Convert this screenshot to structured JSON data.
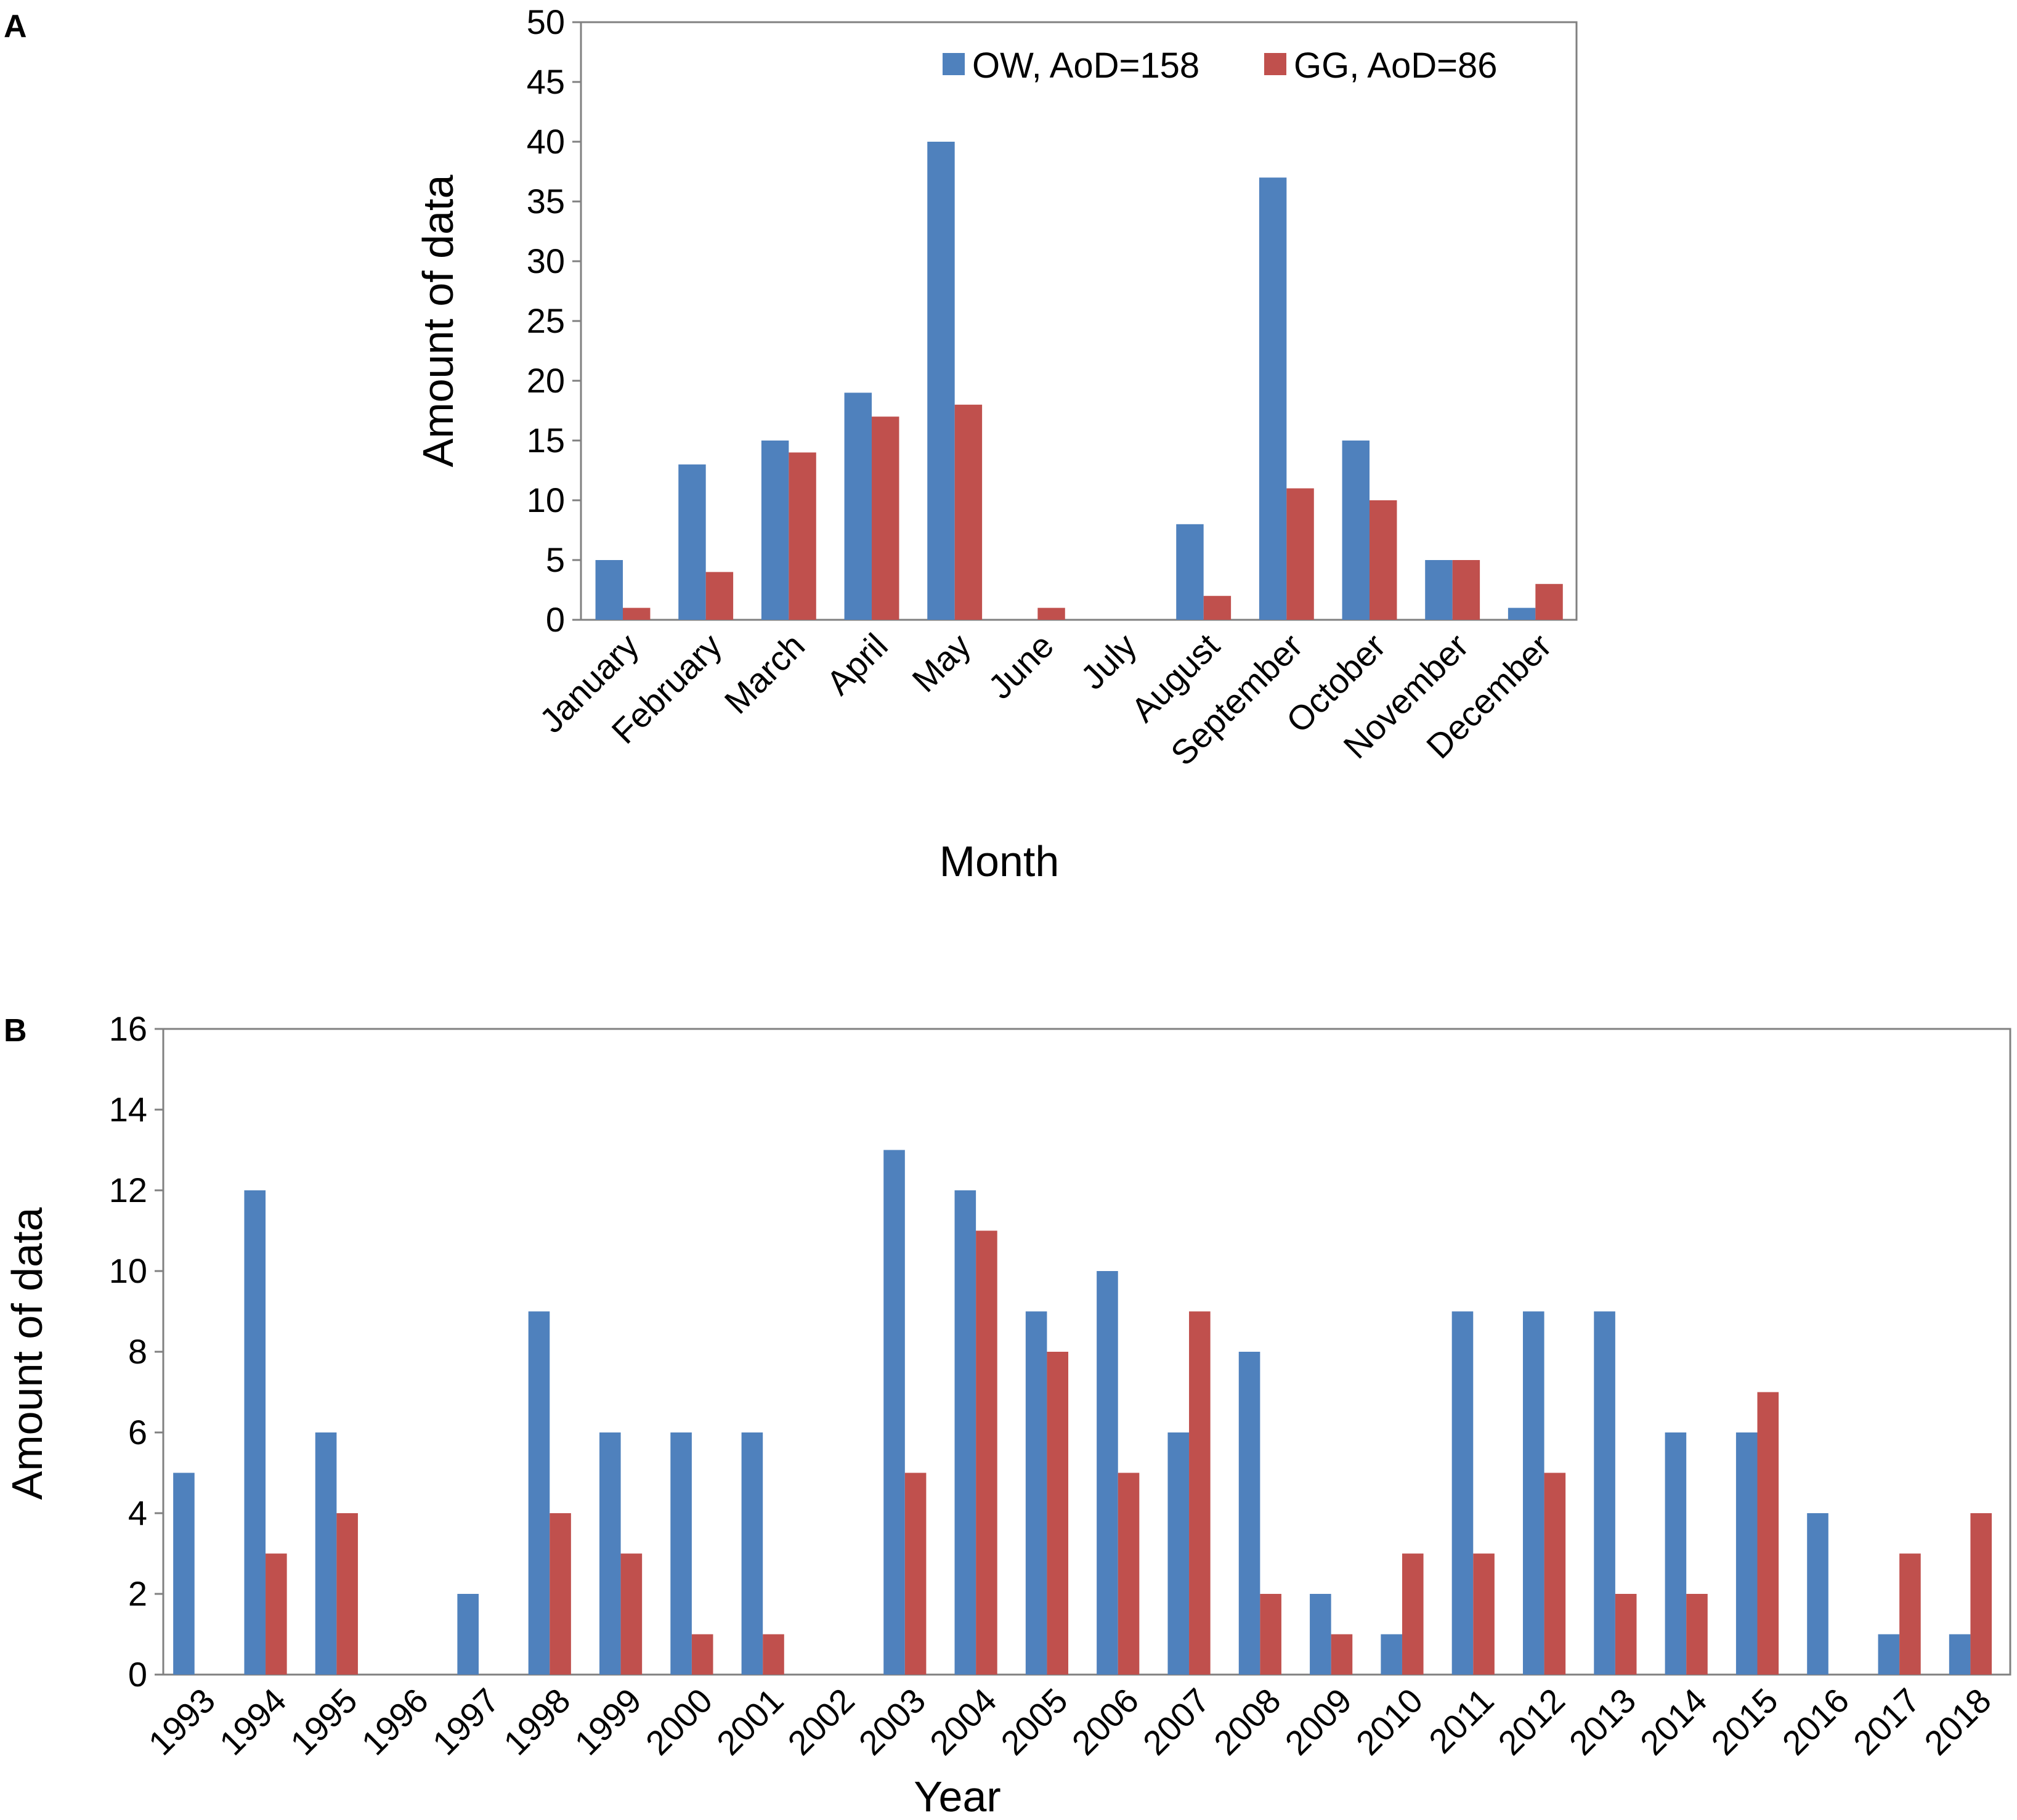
{
  "colors": {
    "ow": "#4F81BD",
    "gg": "#C0504D",
    "axis": "#808080"
  },
  "legend": {
    "ow": "OW, AoD=158",
    "gg": "GG, AoD=86"
  },
  "chart_data": [
    {
      "panel": "A",
      "type": "bar",
      "title": "",
      "xlabel": "Month",
      "ylabel": "Amount of data",
      "ylim": [
        0,
        50
      ],
      "yticks": [
        "0",
        "5",
        "10",
        "15",
        "20",
        "25",
        "30",
        "35",
        "40",
        "45",
        "50"
      ],
      "legend_position": "top-right",
      "categories": [
        "January",
        "February",
        "March",
        "April",
        "May",
        "June",
        "July",
        "August",
        "September",
        "October",
        "November",
        "December"
      ],
      "series": [
        {
          "name": "OW, AoD=158",
          "values": [
            5,
            13,
            15,
            19,
            40,
            0,
            0,
            8,
            37,
            15,
            5,
            1
          ]
        },
        {
          "name": "GG, AoD=86",
          "values": [
            1,
            4,
            14,
            17,
            18,
            1,
            0,
            2,
            11,
            10,
            5,
            3
          ]
        }
      ]
    },
    {
      "panel": "B",
      "type": "bar",
      "title": "",
      "xlabel": "Year",
      "ylabel": "Amount of data",
      "ylim": [
        0,
        16
      ],
      "yticks": [
        "0",
        "2",
        "4",
        "6",
        "8",
        "10",
        "12",
        "14",
        "16"
      ],
      "categories": [
        "1993",
        "1994",
        "1995",
        "1996",
        "1997",
        "1998",
        "1999",
        "2000",
        "2001",
        "2002",
        "2003",
        "2004",
        "2005",
        "2006",
        "2007",
        "2008",
        "2009",
        "2010",
        "2011",
        "2012",
        "2013",
        "2014",
        "2015",
        "2016",
        "2017",
        "2018"
      ],
      "series": [
        {
          "name": "OW",
          "values": [
            5,
            12,
            6,
            0,
            2,
            9,
            6,
            6,
            6,
            0,
            13,
            12,
            9,
            10,
            6,
            8,
            2,
            1,
            9,
            9,
            9,
            6,
            6,
            4,
            1,
            1
          ]
        },
        {
          "name": "GG",
          "values": [
            0,
            3,
            4,
            0,
            0,
            4,
            3,
            1,
            1,
            0,
            5,
            11,
            8,
            5,
            9,
            2,
            1,
            3,
            3,
            5,
            2,
            2,
            7,
            0,
            3,
            4
          ]
        }
      ]
    }
  ]
}
